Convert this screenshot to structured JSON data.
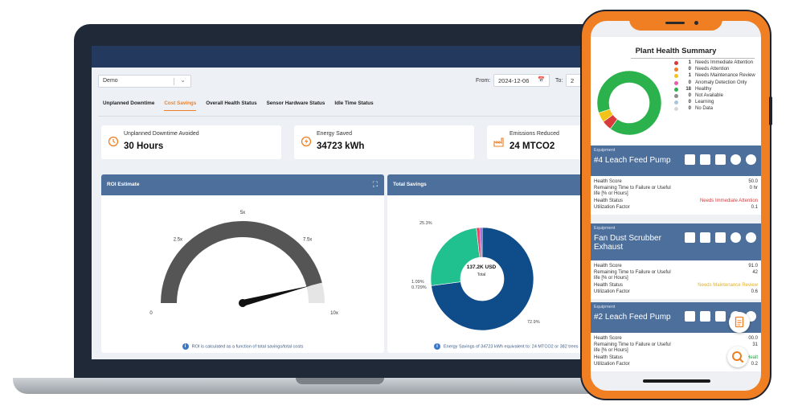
{
  "dashboard": {
    "plant_select": "Demo",
    "from_label": "From:",
    "from_date": "2024-12-06",
    "to_label": "To:",
    "to_date": "2",
    "tabs": [
      {
        "label": "Unplanned Downtime",
        "active": false
      },
      {
        "label": "Cost Savings",
        "active": true
      },
      {
        "label": "Overall Health Status",
        "active": false
      },
      {
        "label": "Sensor Hardware Status",
        "active": false
      },
      {
        "label": "Idle Time Status",
        "active": false
      }
    ],
    "kpis": [
      {
        "label": "Unplanned Downtime Avoided",
        "value": "30 Hours",
        "icon": "clock-rewind-icon"
      },
      {
        "label": "Energy Saved",
        "value": "34723 kWh",
        "icon": "energy-icon"
      },
      {
        "label": "Emissions Reduced",
        "value": "24 MTCO2",
        "icon": "factory-icon"
      }
    ],
    "roi_panel": {
      "title": "ROI Estimate",
      "footnote": "ROI is calculated as a function of total savings/total costs"
    },
    "savings_panel": {
      "title": "Total Savings",
      "center_value": "137.2K USD",
      "center_label": "Total",
      "footnote": "Energy Savings of 34723 kWh equivalent to: 24 MTCO2 or 382 trees"
    },
    "accent_color": "#f07f23",
    "panel_header_color": "#4d6f9b"
  },
  "chart_data": [
    {
      "type": "gauge",
      "title": "ROI Estimate",
      "tick_labels": [
        "0",
        "2.5x",
        "5x",
        "7.5x",
        "10x"
      ],
      "range": [
        0,
        10
      ],
      "value": 9.2,
      "colors": {
        "track": "#555555",
        "end_segment": "#e5e5e5",
        "needle": "#111111"
      }
    },
    {
      "type": "pie",
      "title": "Total Savings",
      "slices": [
        {
          "label": "72.9%",
          "value": 72.9,
          "color": "#0f4c8a"
        },
        {
          "label": "25.3%",
          "value": 25.3,
          "color": "#20c08f"
        },
        {
          "label": "1.09%",
          "value": 1.09,
          "color": "#e8436a"
        },
        {
          "label": "0.729%",
          "value": 0.729,
          "color": "#8a5cc7"
        }
      ]
    },
    {
      "type": "pie",
      "title": "Plant Health Summary",
      "slices": [
        {
          "label": "Needs Immediate Attention",
          "value": 1,
          "color": "#d93b3b"
        },
        {
          "label": "Needs Attention",
          "value": 0,
          "color": "#f07f23"
        },
        {
          "label": "Needs Maintenance Review",
          "value": 1,
          "color": "#f2c318"
        },
        {
          "label": "Anomaly Detection Only",
          "value": 0,
          "color": "#e65fa8"
        },
        {
          "label": "Healthy",
          "value": 18,
          "color": "#2bb24c"
        },
        {
          "label": "Not Available",
          "value": 0,
          "color": "#8d8d8d"
        },
        {
          "label": "Learning",
          "value": 0,
          "color": "#a7c5e0"
        },
        {
          "label": "No Data",
          "value": 0,
          "color": "#d7d7d7"
        }
      ]
    }
  ],
  "mobile": {
    "summary_title": "Plant Health Summary",
    "legend": [
      {
        "count": "1",
        "label": "Needs Immediate Attention",
        "color": "#d93b3b"
      },
      {
        "count": "0",
        "label": "Needs Attention",
        "color": "#f07f23"
      },
      {
        "count": "1",
        "label": "Needs Maintenance Review",
        "color": "#f2c318"
      },
      {
        "count": "0",
        "label": "Anomaly Detection Only",
        "color": "#e65fa8"
      },
      {
        "count": "18",
        "label": "Healthy",
        "color": "#2bb24c"
      },
      {
        "count": "0",
        "label": "Not Available",
        "color": "#8d8d8d"
      },
      {
        "count": "0",
        "label": "Learning",
        "color": "#a7c5e0"
      },
      {
        "count": "0",
        "label": "No Data",
        "color": "#d7d7d7"
      }
    ],
    "equipment_label": "Equipment",
    "field_labels": {
      "health_score": "Health Score",
      "remaining_time": "Remaining Time to Failure or Useful life [% or Hours]",
      "health_status": "Health Status",
      "utilization": "Utilization Factor"
    },
    "cards": [
      {
        "name": "#4 Leach Feed Pump",
        "health_score": "50.0",
        "remaining": "0 hr",
        "status": "Needs Immediate Attention",
        "utilization": "0.1"
      },
      {
        "name": "Fan Dust Scrubber Exhaust",
        "health_score": "91.0",
        "remaining": "42",
        "status": "Needs Maintenance Review",
        "utilization": "0.6"
      },
      {
        "name": "#2 Leach Feed Pump",
        "health_score": "00.0",
        "remaining": "31",
        "status": "Healt",
        "utilization": "0.2"
      }
    ]
  }
}
